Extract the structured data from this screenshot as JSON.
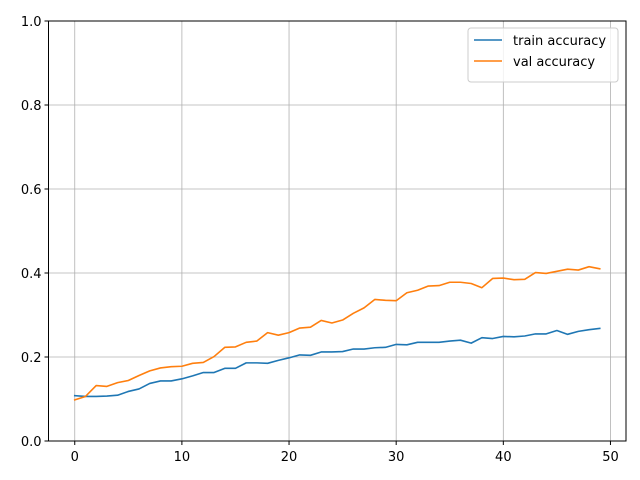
{
  "chart_data": {
    "type": "line",
    "title": "",
    "xlabel": "",
    "ylabel": "",
    "xlim": [
      -2.45,
      51.45
    ],
    "ylim": [
      0.0,
      1.0
    ],
    "grid": true,
    "legend_position": "top-right",
    "x_ticks": [
      0,
      10,
      20,
      30,
      40,
      50
    ],
    "y_ticks": [
      0.0,
      0.2,
      0.4,
      0.6,
      0.8,
      1.0
    ],
    "x_tick_labels": [
      "0",
      "10",
      "20",
      "30",
      "40",
      "50"
    ],
    "y_tick_labels": [
      "0.0",
      "0.2",
      "0.4",
      "0.6",
      "0.8",
      "1.0"
    ],
    "x": [
      0,
      1,
      2,
      3,
      4,
      5,
      6,
      7,
      8,
      9,
      10,
      11,
      12,
      13,
      14,
      15,
      16,
      17,
      18,
      19,
      20,
      21,
      22,
      23,
      24,
      25,
      26,
      27,
      28,
      29,
      30,
      31,
      32,
      33,
      34,
      35,
      36,
      37,
      38,
      39,
      40,
      41,
      42,
      43,
      44,
      45,
      46,
      47,
      48,
      49
    ],
    "series": [
      {
        "name": "train accuracy",
        "color": "#1f77b4",
        "values": [
          0.108,
          0.106,
          0.106,
          0.107,
          0.109,
          0.118,
          0.124,
          0.137,
          0.143,
          0.143,
          0.148,
          0.155,
          0.163,
          0.163,
          0.173,
          0.173,
          0.186,
          0.186,
          0.185,
          0.192,
          0.198,
          0.205,
          0.204,
          0.212,
          0.212,
          0.213,
          0.219,
          0.219,
          0.222,
          0.223,
          0.23,
          0.229,
          0.235,
          0.235,
          0.235,
          0.238,
          0.24,
          0.233,
          0.246,
          0.244,
          0.249,
          0.248,
          0.25,
          0.255,
          0.255,
          0.263,
          0.254,
          0.261,
          0.265,
          0.268
        ]
      },
      {
        "name": "val accuracy",
        "color": "#ff7f0e",
        "values": [
          0.098,
          0.106,
          0.132,
          0.13,
          0.139,
          0.144,
          0.156,
          0.167,
          0.174,
          0.177,
          0.178,
          0.185,
          0.187,
          0.201,
          0.223,
          0.224,
          0.235,
          0.238,
          0.258,
          0.252,
          0.258,
          0.269,
          0.271,
          0.287,
          0.281,
          0.288,
          0.304,
          0.317,
          0.337,
          0.335,
          0.334,
          0.353,
          0.359,
          0.369,
          0.37,
          0.378,
          0.378,
          0.375,
          0.365,
          0.387,
          0.388,
          0.384,
          0.385,
          0.401,
          0.399,
          0.404,
          0.409,
          0.407,
          0.415,
          0.41
        ]
      }
    ]
  }
}
